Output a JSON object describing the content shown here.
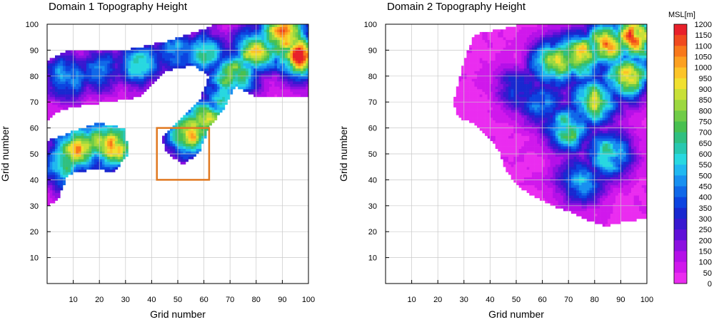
{
  "chart_data": [
    {
      "type": "heatmap",
      "title": "Domain 1  Topography Height",
      "xlabel": "Grid number",
      "ylabel": "Grid number",
      "xlim": [
        0,
        100
      ],
      "ylim": [
        0,
        100
      ],
      "x_ticks": [
        10,
        20,
        30,
        40,
        50,
        60,
        70,
        80,
        90,
        100
      ],
      "y_ticks": [
        10,
        20,
        30,
        40,
        50,
        60,
        70,
        80,
        90,
        100
      ],
      "grid": true,
      "highlight_box": {
        "x": [
          42,
          62
        ],
        "y": [
          40,
          60
        ],
        "color": "#e07820"
      },
      "peaks": [
        {
          "x": 12,
          "y": 52,
          "h": 950
        },
        {
          "x": 26,
          "y": 53,
          "h": 1000
        },
        {
          "x": 20,
          "y": 55,
          "h": 750
        },
        {
          "x": 6,
          "y": 46,
          "h": 700
        },
        {
          "x": 8,
          "y": 80,
          "h": 550
        },
        {
          "x": 20,
          "y": 82,
          "h": 450
        },
        {
          "x": 35,
          "y": 85,
          "h": 600
        },
        {
          "x": 50,
          "y": 90,
          "h": 500
        },
        {
          "x": 60,
          "y": 88,
          "h": 650
        },
        {
          "x": 73,
          "y": 82,
          "h": 750
        },
        {
          "x": 80,
          "y": 90,
          "h": 900
        },
        {
          "x": 90,
          "y": 96,
          "h": 1200
        },
        {
          "x": 97,
          "y": 88,
          "h": 1150
        },
        {
          "x": 55,
          "y": 58,
          "h": 1000
        },
        {
          "x": 62,
          "y": 63,
          "h": 900
        },
        {
          "x": 67,
          "y": 70,
          "h": 700
        },
        {
          "x": 70,
          "y": 80,
          "h": 800
        }
      ]
    },
    {
      "type": "heatmap",
      "title": "Domain 2  Topography Height",
      "xlabel": "Grid number",
      "ylabel": "Grid number",
      "xlim": [
        0,
        100
      ],
      "ylim": [
        0,
        100
      ],
      "x_ticks": [
        10,
        20,
        30,
        40,
        50,
        60,
        70,
        80,
        90,
        100
      ],
      "y_ticks": [
        10,
        20,
        30,
        40,
        50,
        60,
        70,
        80,
        90,
        100
      ],
      "grid": true,
      "peaks": [
        {
          "x": 75,
          "y": 88,
          "h": 1000
        },
        {
          "x": 85,
          "y": 92,
          "h": 1100
        },
        {
          "x": 95,
          "y": 95,
          "h": 1200
        },
        {
          "x": 65,
          "y": 85,
          "h": 900
        },
        {
          "x": 80,
          "y": 70,
          "h": 850
        },
        {
          "x": 70,
          "y": 60,
          "h": 750
        },
        {
          "x": 85,
          "y": 50,
          "h": 700
        },
        {
          "x": 60,
          "y": 70,
          "h": 500
        },
        {
          "x": 75,
          "y": 40,
          "h": 550
        },
        {
          "x": 92,
          "y": 80,
          "h": 950
        },
        {
          "x": 52,
          "y": 75,
          "h": 400
        }
      ]
    }
  ],
  "colorbar": {
    "label": "MSL[m]",
    "levels": [
      1200,
      1150,
      1100,
      1050,
      1000,
      950,
      900,
      850,
      800,
      750,
      700,
      650,
      600,
      550,
      500,
      450,
      400,
      350,
      300,
      250,
      200,
      150,
      100,
      50,
      0
    ],
    "colors": [
      "#e8202a",
      "#f04a1e",
      "#f8781a",
      "#fca020",
      "#fcc428",
      "#f0e030",
      "#c8e038",
      "#9cd840",
      "#70cc48",
      "#48c050",
      "#30c080",
      "#28c8b0",
      "#28d8e0",
      "#20b8f0",
      "#1890f0",
      "#1068e8",
      "#0c44e0",
      "#1828d0",
      "#3818d0",
      "#6010d8",
      "#8c10e0",
      "#b410e8",
      "#d018ec",
      "#ea2cf0"
    ]
  }
}
